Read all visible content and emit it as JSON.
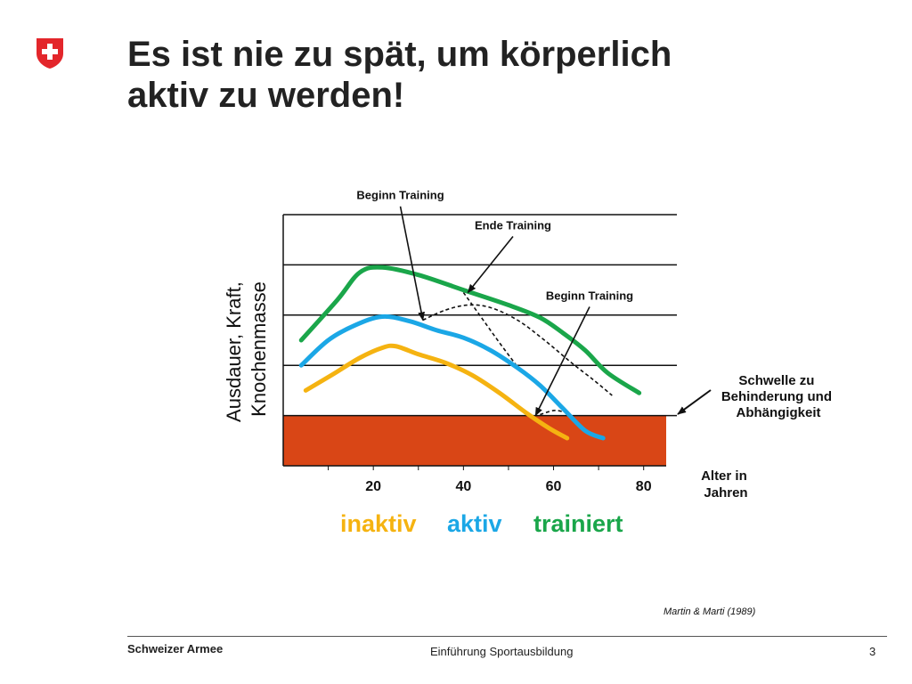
{
  "header": {
    "title_line1": "Es ist nie zu spät, um körperlich",
    "title_line2": "aktiv zu werden!"
  },
  "chart_data": {
    "type": "line",
    "ylabel_line1": "Ausdauer, Kraft,",
    "ylabel_line2": "Knochenmasse",
    "xlabel_line1": "Alter in",
    "xlabel_line2": "Jahren",
    "x_ticks": [
      20,
      40,
      60,
      80
    ],
    "xlim": [
      0,
      85
    ],
    "ylim": [
      0,
      5
    ],
    "threshold": {
      "level": 1.0,
      "color": "#d94616",
      "label_lines": [
        "Schwelle zu",
        "Behinderung und",
        "Abhängigkeit"
      ]
    },
    "series": [
      {
        "name": "trainiert",
        "color": "#1aa64a",
        "x": [
          4,
          12,
          17,
          22,
          30,
          40,
          50,
          57,
          62,
          67,
          72,
          79
        ],
        "y": [
          2.5,
          3.3,
          3.85,
          3.95,
          3.8,
          3.5,
          3.2,
          2.95,
          2.65,
          2.3,
          1.85,
          1.45
        ]
      },
      {
        "name": "aktiv",
        "color": "#1ba7e6",
        "x": [
          4,
          10,
          16,
          22,
          28,
          34,
          40,
          46,
          52,
          57,
          62,
          67,
          71
        ],
        "y": [
          2.0,
          2.5,
          2.8,
          2.97,
          2.88,
          2.7,
          2.55,
          2.3,
          1.95,
          1.6,
          1.15,
          0.7,
          0.55
        ]
      },
      {
        "name": "inaktiv",
        "color": "#f5b311",
        "x": [
          5,
          11,
          17,
          22,
          25,
          30,
          36,
          42,
          48,
          54,
          59,
          63
        ],
        "y": [
          1.5,
          1.82,
          2.15,
          2.35,
          2.38,
          2.22,
          2.05,
          1.8,
          1.45,
          1.05,
          0.75,
          0.55
        ]
      }
    ],
    "dashed_curves": [
      {
        "x": [
          31,
          36,
          41,
          46,
          52,
          58,
          64,
          69,
          73
        ],
        "y": [
          2.9,
          3.1,
          3.2,
          3.15,
          2.9,
          2.5,
          2.05,
          1.7,
          1.4
        ]
      },
      {
        "x": [
          40,
          44,
          48,
          53
        ],
        "y": [
          3.45,
          2.95,
          2.45,
          1.85
        ]
      },
      {
        "x": [
          57,
          60,
          62
        ],
        "y": [
          1.02,
          1.1,
          1.08
        ]
      }
    ],
    "annotations": [
      {
        "text": "Beginn Training",
        "from": [
          26,
          5.2
        ],
        "to": [
          31,
          2.9
        ]
      },
      {
        "text": "Ende Training",
        "from": [
          51,
          4.6
        ],
        "to": [
          41,
          3.45
        ]
      },
      {
        "text": "Beginn Training",
        "from": [
          68,
          3.2
        ],
        "to": [
          56,
          1.0
        ]
      }
    ],
    "legend": [
      "inaktiv",
      "aktiv",
      "trainiert"
    ],
    "source": "Martin & Marti (1989)"
  },
  "colors": {
    "shield_red": "#e3262b",
    "threshold_red": "#d94616",
    "green": "#1aa64a",
    "blue": "#1ba7e6",
    "yellow": "#f5b311"
  },
  "footer": {
    "left": "Schweizer Armee",
    "center": "Einführung Sportausbildung",
    "page": "3"
  }
}
